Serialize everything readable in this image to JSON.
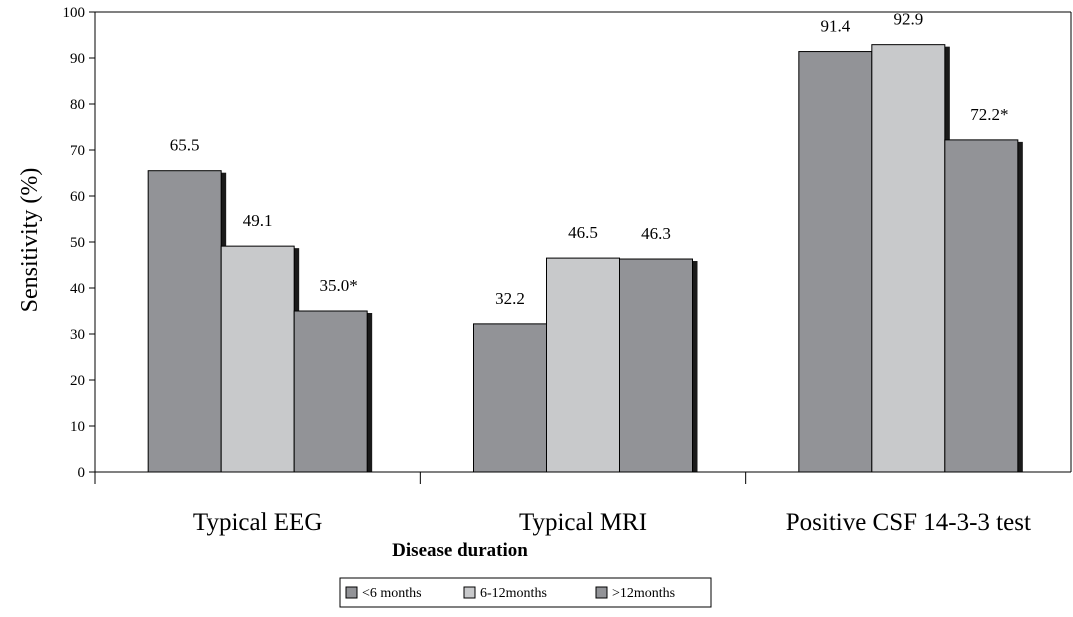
{
  "chart_data": {
    "type": "bar",
    "categories": [
      "Typical EEG",
      "Typical MRI",
      "Positive CSF 14-3-3 test"
    ],
    "series": [
      {
        "name": "<6 months",
        "values": [
          65.5,
          32.2,
          91.4
        ],
        "labels": [
          "65.5",
          "32.2",
          "91.4"
        ],
        "color": "#929397"
      },
      {
        "name": "6-12months",
        "values": [
          49.1,
          46.5,
          92.9
        ],
        "labels": [
          "49.1",
          "46.5",
          "92.9"
        ],
        "color": "#c8c9cb"
      },
      {
        "name": ">12months",
        "values": [
          35.0,
          46.3,
          72.2
        ],
        "labels": [
          "35.0*",
          "46.3",
          "72.2*"
        ],
        "color": "#929397"
      }
    ],
    "xlabel": "Disease duration",
    "ylabel": "Sensitivity (%)",
    "ylim": [
      0,
      100
    ],
    "yticks": [
      0,
      10,
      20,
      30,
      40,
      50,
      60,
      70,
      80,
      90,
      100
    ],
    "grid": false,
    "legend_position": "bottom-center",
    "shadow_color": "#1a1a1a"
  }
}
